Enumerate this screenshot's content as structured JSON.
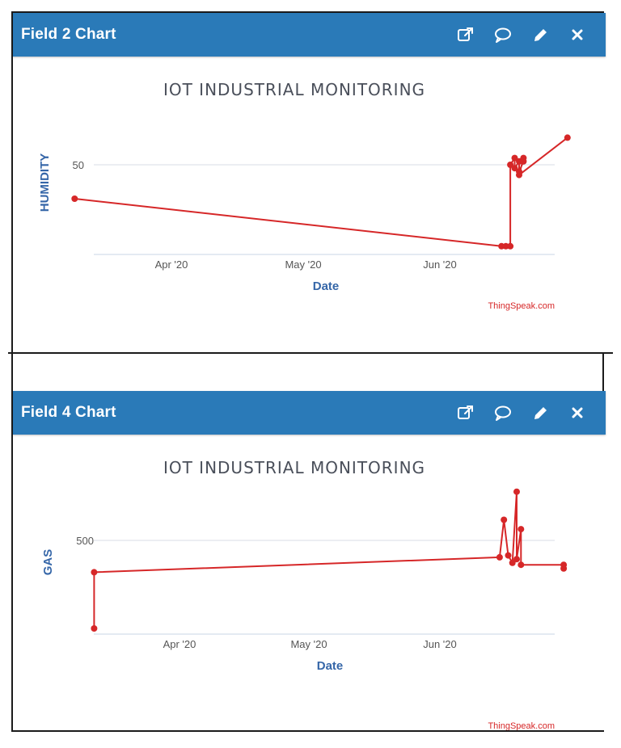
{
  "panels": [
    {
      "title": "Field 2 Chart",
      "icons": [
        "external-link-icon",
        "comment-icon",
        "pencil-icon",
        "close-icon"
      ],
      "chart": {
        "title": "IOT INDUSTRIAL MONITORING",
        "ylabel": "HUMIDITY",
        "xlabel": "Date",
        "credit": "ThingSpeak.com",
        "y_ticks": [
          "50"
        ],
        "x_ticks": [
          "Apr '20",
          "May '20",
          "Jun '20"
        ]
      }
    },
    {
      "title": "Field 4 Chart",
      "icons": [
        "external-link-icon",
        "comment-icon",
        "pencil-icon",
        "close-icon"
      ],
      "chart": {
        "title": "IOT INDUSTRIAL MONITORING",
        "ylabel": "GAS",
        "xlabel": "Date",
        "credit": "ThingSpeak.com",
        "y_ticks": [
          "500"
        ],
        "x_ticks": [
          "Apr '20",
          "May '20",
          "Jun '20"
        ]
      }
    }
  ],
  "colors": {
    "header": "#2a7ab8",
    "series": "#d62728",
    "axis_title": "#3566a8",
    "grid": "#d8dde6"
  },
  "chart_data": [
    {
      "type": "line",
      "title": "IOT INDUSTRIAL MONITORING",
      "xlabel": "Date",
      "ylabel": "HUMIDITY",
      "x_ticks": [
        "Apr '20",
        "May '20",
        "Jun '20"
      ],
      "ylim": [
        22,
        70
      ],
      "grid": true,
      "series": [
        {
          "points": [
            {
              "x": "2020-03-10",
              "y": 40
            },
            {
              "x": "2020-06-15",
              "y": 26
            },
            {
              "x": "2020-06-16",
              "y": 26
            },
            {
              "x": "2020-06-17",
              "y": 26
            },
            {
              "x": "2020-06-17",
              "y": 50
            },
            {
              "x": "2020-06-18",
              "y": 52
            },
            {
              "x": "2020-06-18",
              "y": 49
            },
            {
              "x": "2020-06-19",
              "y": 51
            },
            {
              "x": "2020-06-19",
              "y": 48
            },
            {
              "x": "2020-06-20",
              "y": 51
            },
            {
              "x": "2020-06-20",
              "y": 52
            },
            {
              "x": "2020-06-19",
              "y": 47
            },
            {
              "x": "2020-06-30",
              "y": 58
            }
          ]
        }
      ]
    },
    {
      "type": "line",
      "title": "IOT INDUSTRIAL MONITORING",
      "xlabel": "Date",
      "ylabel": "GAS",
      "x_ticks": [
        "Apr '20",
        "May '20",
        "Jun '20"
      ],
      "ylim": [
        0,
        800
      ],
      "grid": true,
      "series": [
        {
          "points": [
            {
              "x": "2020-03-12",
              "y": 30
            },
            {
              "x": "2020-03-12",
              "y": 330
            },
            {
              "x": "2020-06-15",
              "y": 410
            },
            {
              "x": "2020-06-16",
              "y": 610
            },
            {
              "x": "2020-06-17",
              "y": 420
            },
            {
              "x": "2020-06-18",
              "y": 380
            },
            {
              "x": "2020-06-19",
              "y": 760
            },
            {
              "x": "2020-06-19",
              "y": 400
            },
            {
              "x": "2020-06-20",
              "y": 560
            },
            {
              "x": "2020-06-20",
              "y": 370
            },
            {
              "x": "2020-06-30",
              "y": 370
            },
            {
              "x": "2020-06-30",
              "y": 350
            }
          ]
        }
      ]
    }
  ]
}
